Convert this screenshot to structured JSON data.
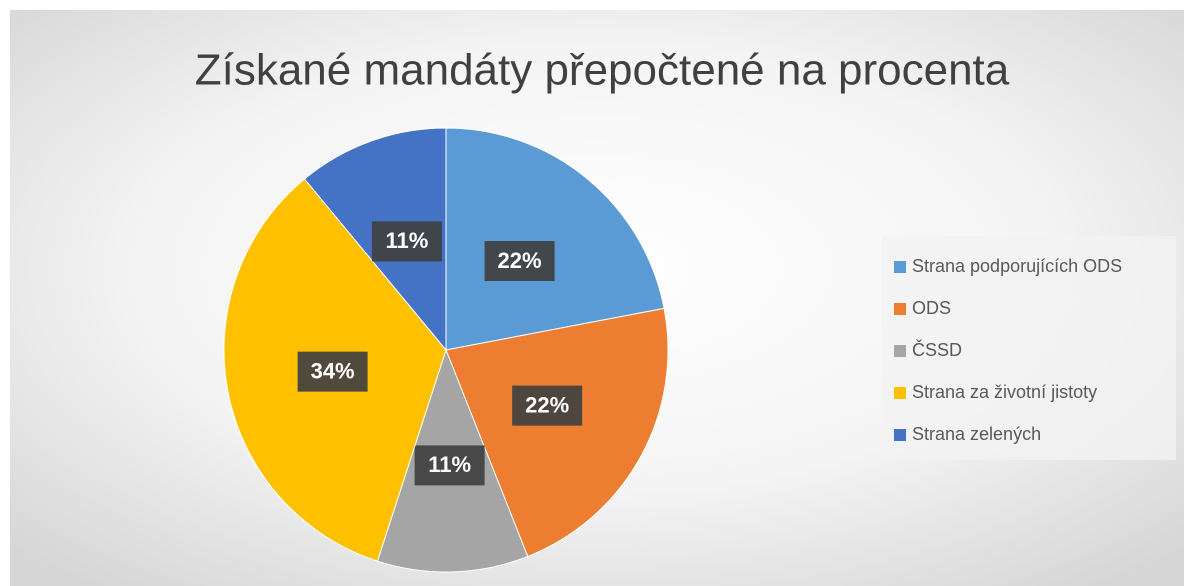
{
  "chart_data": {
    "type": "pie",
    "title": "Získané mandáty přepočtené na procenta",
    "categories": [
      "Strana podporujících ODS",
      "ODS",
      "ČSSD",
      "Strana za životní jistoty",
      "Strana zelených"
    ],
    "values": [
      22,
      22,
      11,
      34,
      11
    ],
    "value_labels": [
      "22%",
      "22%",
      "11%",
      "34%",
      "11%"
    ],
    "colors": [
      "#5b9bd5",
      "#ed7d31",
      "#a5a5a5",
      "#ffc000",
      "#4472c4"
    ],
    "legend": "right"
  }
}
